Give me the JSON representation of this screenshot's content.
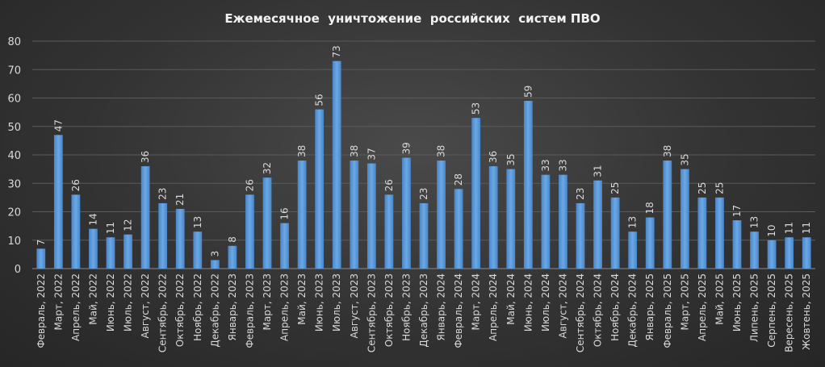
{
  "chart_data": {
    "type": "bar",
    "title": "Ежемесячное  уничтожение  российских  систем ПВО",
    "xlabel": "",
    "ylabel": "",
    "ylim": [
      0,
      80
    ],
    "yticks": [
      0,
      10,
      20,
      30,
      40,
      50,
      60,
      70,
      80
    ],
    "grid": true,
    "legend": "none",
    "bar_color": "#5b9bd5",
    "categories": [
      "Февраль, 2022",
      "Март, 2022",
      "Апрель, 2022",
      "Май, 2022",
      "Июнь, 2022",
      "Июль, 2022",
      "Август, 2022",
      "Сентябрь, 2022",
      "Октябрь, 2022",
      "Ноябрь, 2022",
      "Декабрь, 2022",
      "Январь, 2023",
      "Февраль, 2023",
      "Март, 2023",
      "Апрель, 2023",
      "Май, 2023",
      "Июнь, 2023",
      "Июль, 2023",
      "Август, 2023",
      "Сентябрь, 2023",
      "Октябрь, 2023",
      "Ноябрь, 2023",
      "Декабрь, 2023",
      "Январь, 2024",
      "Февраль, 2024",
      "Март, 2024",
      "Апрель, 2024",
      "Май, 2024",
      "Июнь, 2024",
      "Июль, 2024",
      "Август, 2024",
      "Сентябрь, 2024",
      "Октябрь, 2024",
      "Ноябрь, 2024",
      "Декабрь, 2024",
      "Январь, 2025",
      "Февраль, 2025",
      "Март, 2025",
      "Апрель, 2025",
      "Май, 2025",
      "Июнь, 2025",
      "Липень, 2025",
      "Серпень, 2025",
      "Вересень, 2025",
      "Жовтень, 2025"
    ],
    "values": [
      7,
      47,
      26,
      14,
      11,
      12,
      36,
      23,
      21,
      13,
      3,
      8,
      26,
      32,
      16,
      38,
      56,
      73,
      38,
      37,
      26,
      39,
      23,
      38,
      28,
      53,
      36,
      35,
      59,
      33,
      33,
      23,
      31,
      25,
      13,
      18,
      38,
      35,
      25,
      25,
      17,
      13,
      10,
      11,
      11
    ]
  }
}
